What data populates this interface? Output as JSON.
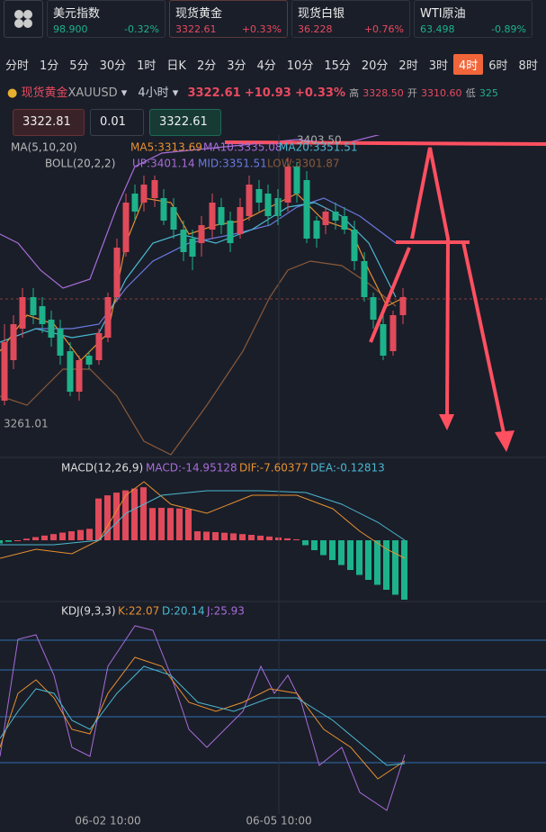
{
  "tickers": [
    {
      "name": "美元指数",
      "price": "98.900",
      "change": "-0.32%"
    },
    {
      "name": "现货黄金",
      "price": "3322.61",
      "change": "+0.33%"
    },
    {
      "name": "现货白银",
      "price": "36.228",
      "change": "+0.76%"
    },
    {
      "name": "WTI原油",
      "price": "63.498",
      "change": "-0.89%"
    }
  ],
  "timeframes": [
    "分时",
    "1分",
    "5分",
    "30分",
    "1时",
    "日K",
    "2分",
    "3分",
    "4分",
    "10分",
    "15分",
    "20分",
    "2时",
    "3时",
    "4时",
    "6时",
    "8时"
  ],
  "header": {
    "symbol": "现货黄金",
    "code": "XAUUSD",
    "period": "4小时",
    "price": "3322.61",
    "change": "+10.93",
    "percent": "+0.33%",
    "high_label": "高",
    "high": "3328.50",
    "open_label": "开",
    "open": "3310.60",
    "low_label": "低",
    "low": "325"
  },
  "order": {
    "bid": "3322.81",
    "quantity": "0.01",
    "ask": "3322.61"
  },
  "main": {
    "ma": "MA(5,10,20)",
    "ma5": "MA5:3313.69",
    "ma10": "MA10:3335.08",
    "ma20": "MA20:3351.51",
    "boll": "BOLL(20,2,2)",
    "up": "UP:3401.14",
    "mid": "MID:3351.51",
    "low": "LOW:3301.87",
    "high_mark": "3403.50",
    "low_mark": "3261.01"
  },
  "macd": {
    "name": "MACD(12,26,9)",
    "macd": "MACD:-14.95128",
    "dif": "DIF:-7.60377",
    "dea": "DEA:-0.12813"
  },
  "kdj": {
    "name": "KDJ(9,3,3)",
    "k": "K:22.07",
    "d": "D:20.14",
    "j": "J:25.93"
  },
  "x_labels": [
    "06-02 10:00",
    "06-05 10:00"
  ]
}
